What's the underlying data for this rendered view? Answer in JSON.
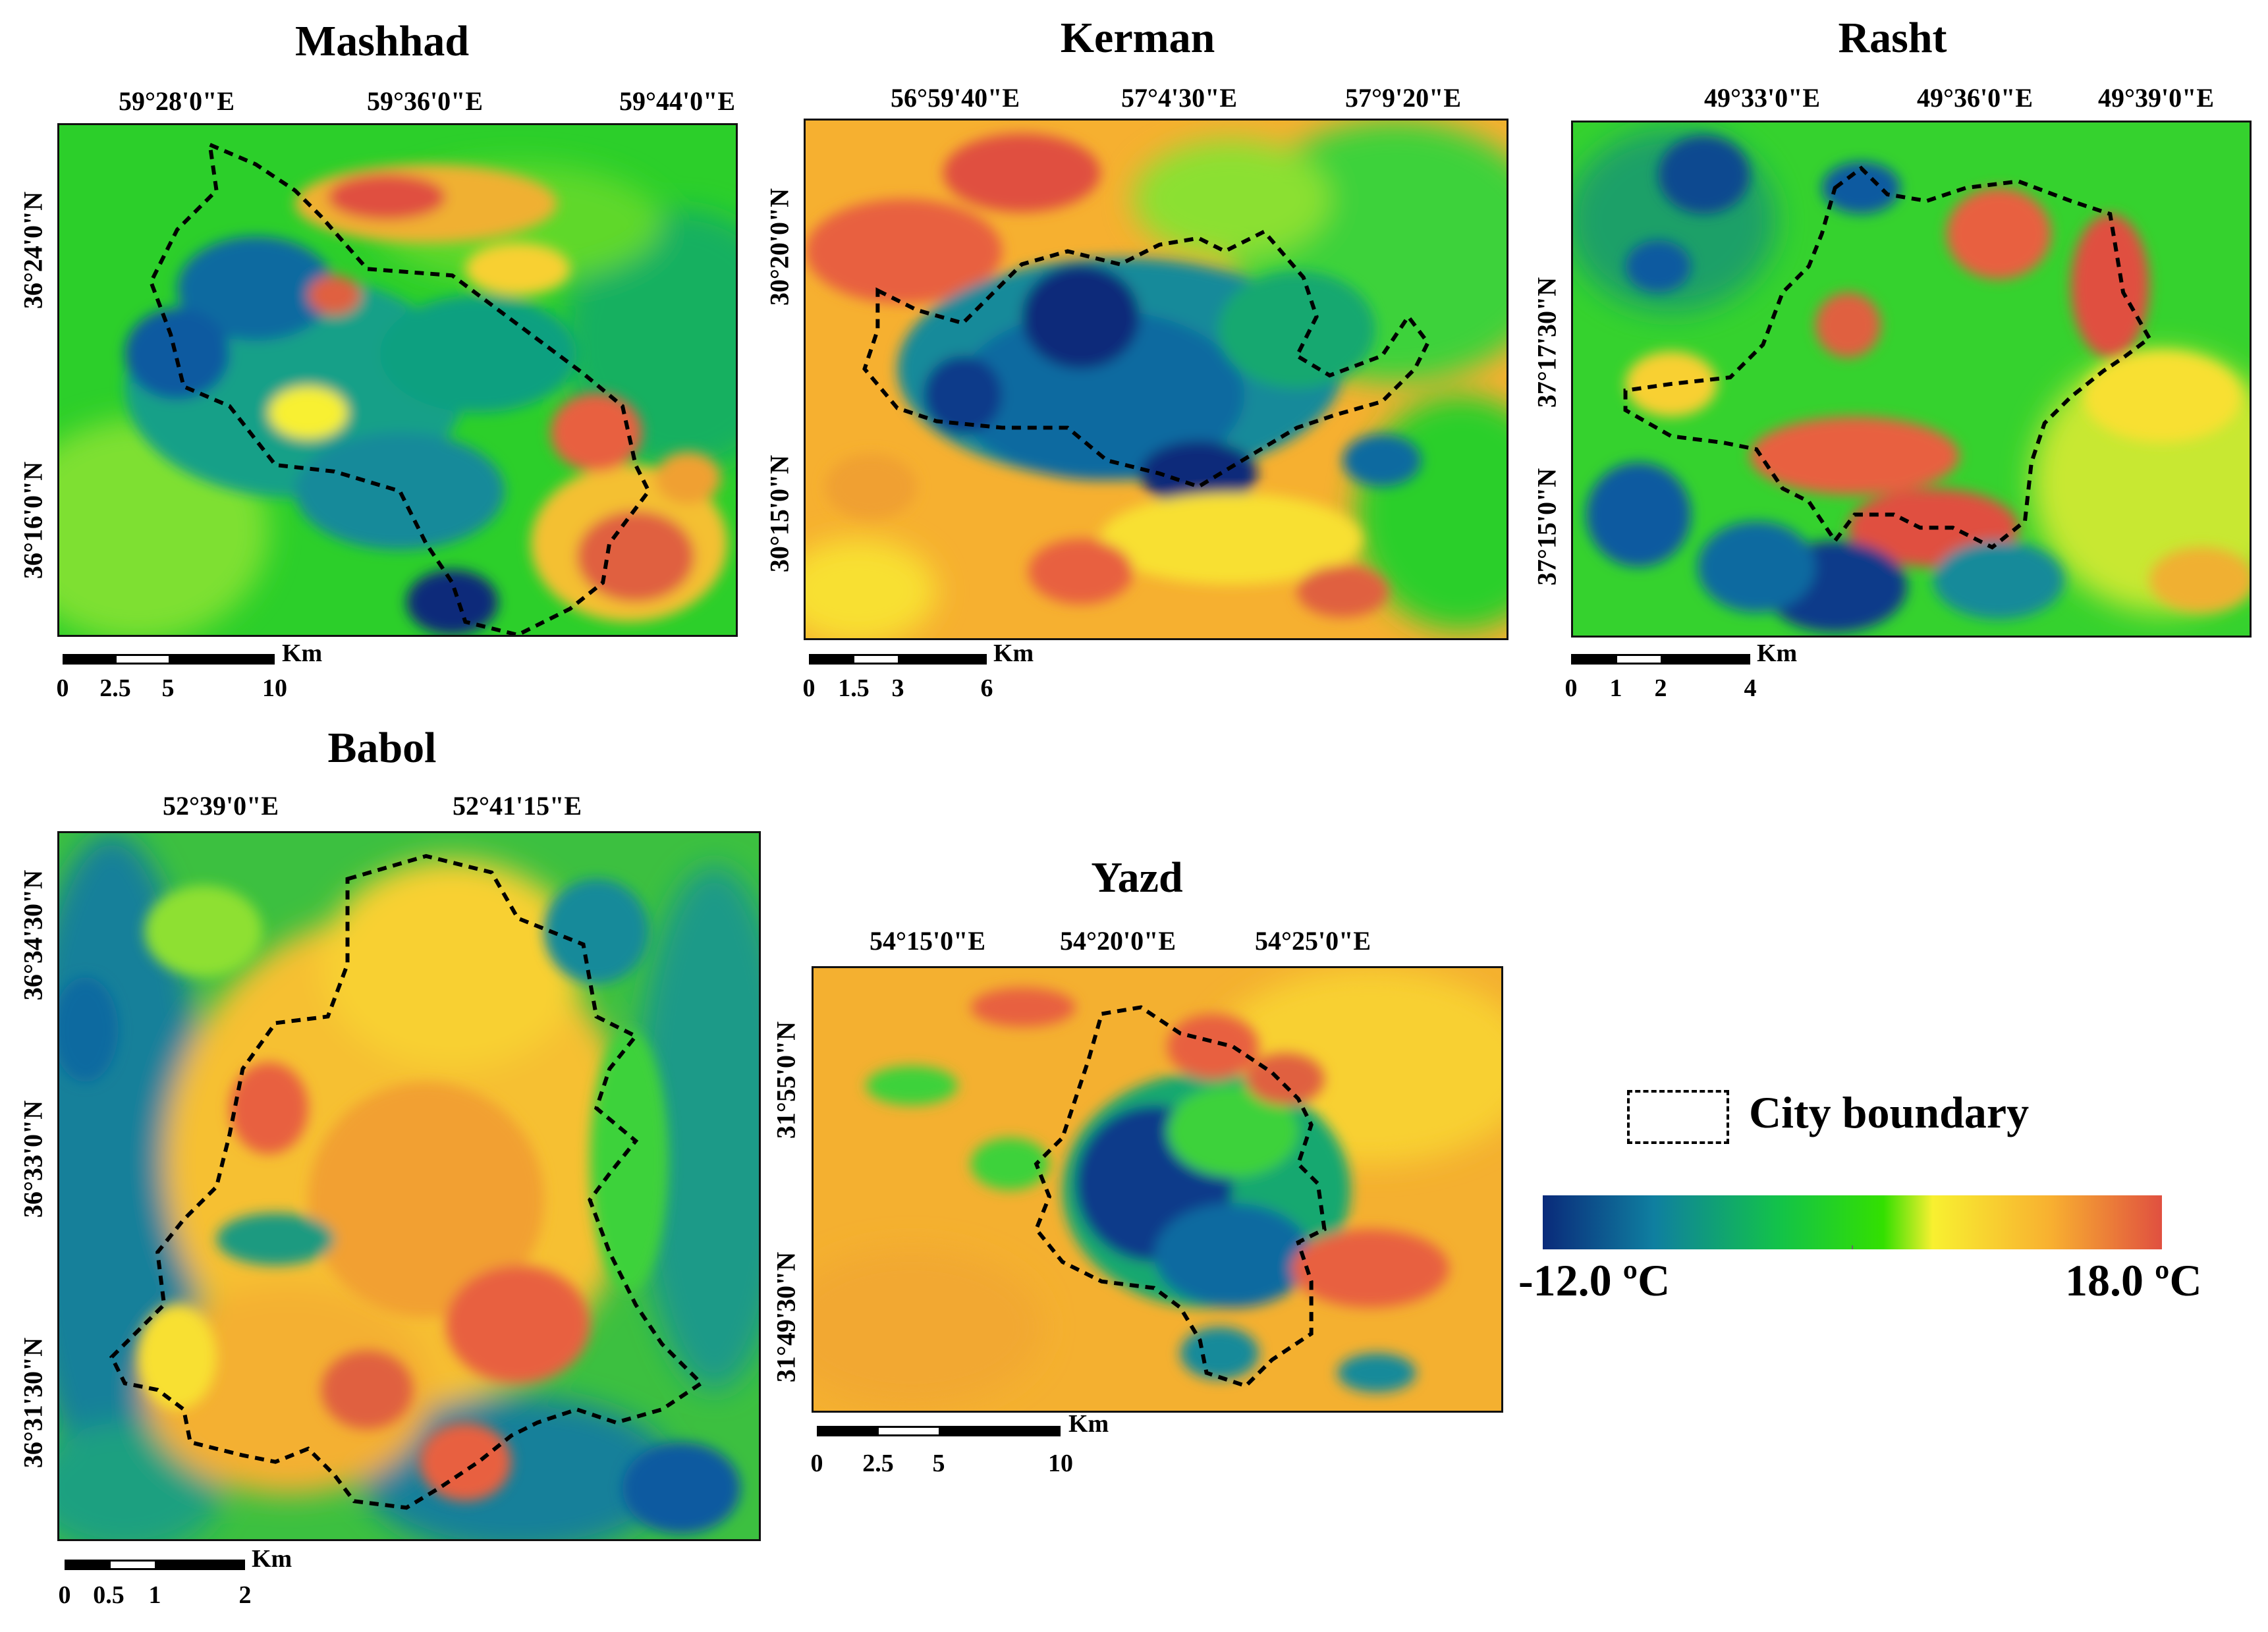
{
  "figure": {
    "panels": {
      "mashhad": {
        "title": "Mashhad",
        "lon_labels": [
          "59°28'0\"E",
          "59°36'0\"E",
          "59°44'0\"E"
        ],
        "lat_labels": [
          "36°24'0\"N",
          "36°16'0\"N"
        ],
        "scale_unit": "Km",
        "scale_ticks": [
          "0",
          "2.5",
          "5",
          "10"
        ]
      },
      "kerman": {
        "title": "Kerman",
        "lon_labels": [
          "56°59'40\"E",
          "57°4'30\"E",
          "57°9'20\"E"
        ],
        "lat_labels": [
          "30°20'0\"N",
          "30°15'0\"N"
        ],
        "scale_unit": "Km",
        "scale_ticks": [
          "0",
          "1.5",
          "3",
          "6"
        ]
      },
      "rasht": {
        "title": "Rasht",
        "lon_labels": [
          "49°33'0\"E",
          "49°36'0\"E",
          "49°39'0\"E"
        ],
        "lat_labels": [
          "37°17'30\"N",
          "37°15'0\"N"
        ],
        "scale_unit": "Km",
        "scale_ticks": [
          "0",
          "1",
          "2",
          "4"
        ]
      },
      "babol": {
        "title": "Babol",
        "lon_labels": [
          "52°39'0\"E",
          "52°41'15\"E"
        ],
        "lat_labels": [
          "36°34'30\"N",
          "36°33'0\"N",
          "36°31'30\"N"
        ],
        "scale_unit": "Km",
        "scale_ticks": [
          "0",
          "0.5",
          "1",
          "2"
        ]
      },
      "yazd": {
        "title": "Yazd",
        "lon_labels": [
          "54°15'0\"E",
          "54°20'0\"E",
          "54°25'0\"E"
        ],
        "lat_labels": [
          "31°55'0\"N",
          "31°49'30\"N"
        ],
        "scale_unit": "Km",
        "scale_ticks": [
          "0",
          "2.5",
          "5",
          "10"
        ]
      }
    },
    "legend": {
      "boundary_label": "City boundary",
      "min_label": "-12.0 ºC",
      "max_label": "18.0 ºC",
      "colors": [
        "#0a2a7a",
        "#0f7fa0",
        "#12c24a",
        "#33e000",
        "#f8f030",
        "#f8b030",
        "#e05040"
      ]
    }
  }
}
